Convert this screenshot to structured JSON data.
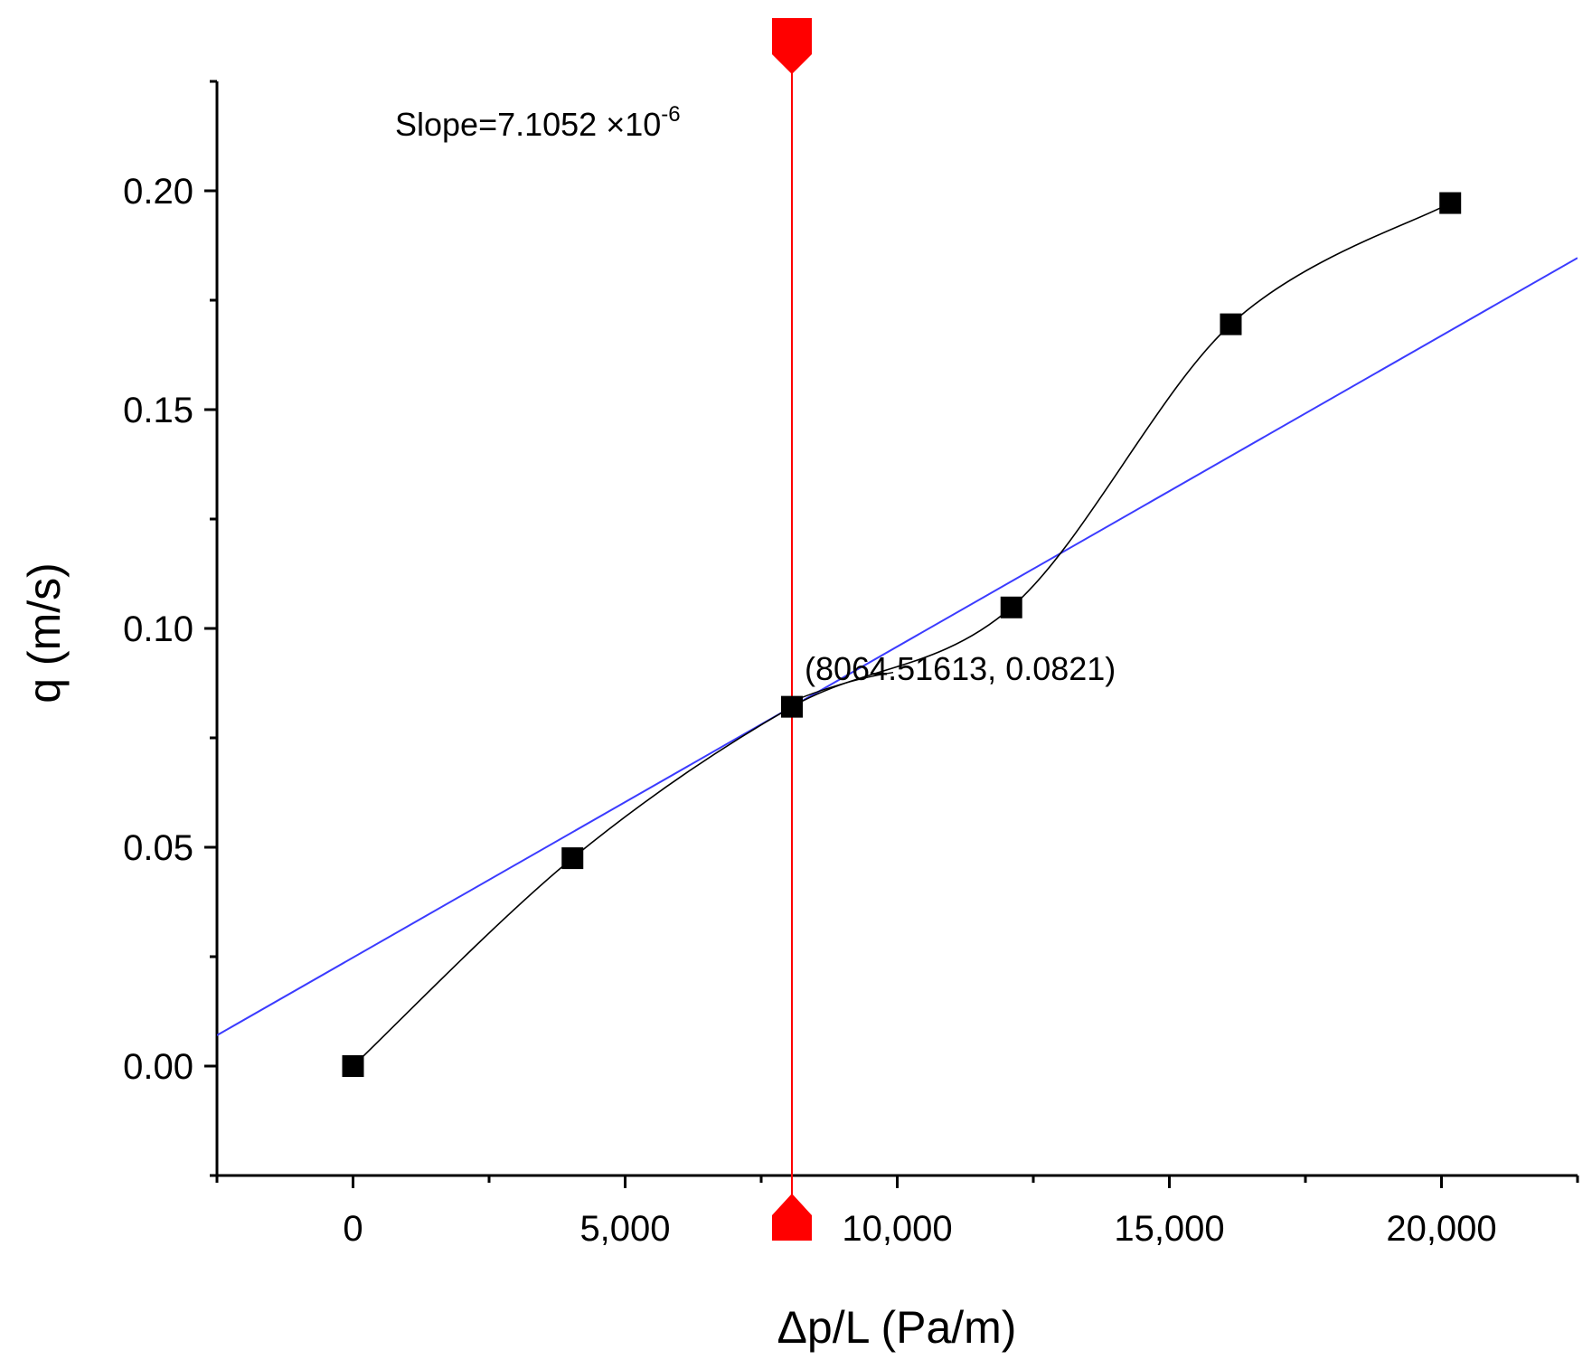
{
  "chart_data": {
    "type": "line",
    "xlabel": "Δp/L (Pa/m)",
    "ylabel": "q (m/s)",
    "xlim": [
      -2500,
      22500
    ],
    "ylim": [
      -0.025,
      0.225
    ],
    "x_ticks": [
      0,
      5000,
      10000,
      15000,
      20000
    ],
    "x_tick_labels": [
      "0",
      "5,000",
      "10,000",
      "15,000",
      "20,000"
    ],
    "y_ticks": [
      0.0,
      0.05,
      0.1,
      0.15,
      0.2
    ],
    "y_tick_labels": [
      "0.00",
      "0.05",
      "0.10",
      "0.15",
      "0.20"
    ],
    "grid": false,
    "series": [
      {
        "name": "q",
        "marker": "square",
        "line": "smooth",
        "color": "#000000",
        "x": [
          0,
          4032.258,
          8064.516,
          12096.774,
          16129.032,
          20161.29
        ],
        "values": [
          0.0,
          0.0475,
          0.0821,
          0.1048,
          0.1695,
          0.1972
        ]
      }
    ],
    "tangent_line": {
      "color": "#3b3bff",
      "slope": 7.1052e-06,
      "point": [
        8064.51613,
        0.0821
      ]
    },
    "vertical_cursor": {
      "x": 8064.51613,
      "color": "#ff0000"
    },
    "slope_label": {
      "prefix": "Slope=7.1052 ×10",
      "exponent": "-6"
    },
    "point_label": "(8064.51613, 0.0821)"
  }
}
